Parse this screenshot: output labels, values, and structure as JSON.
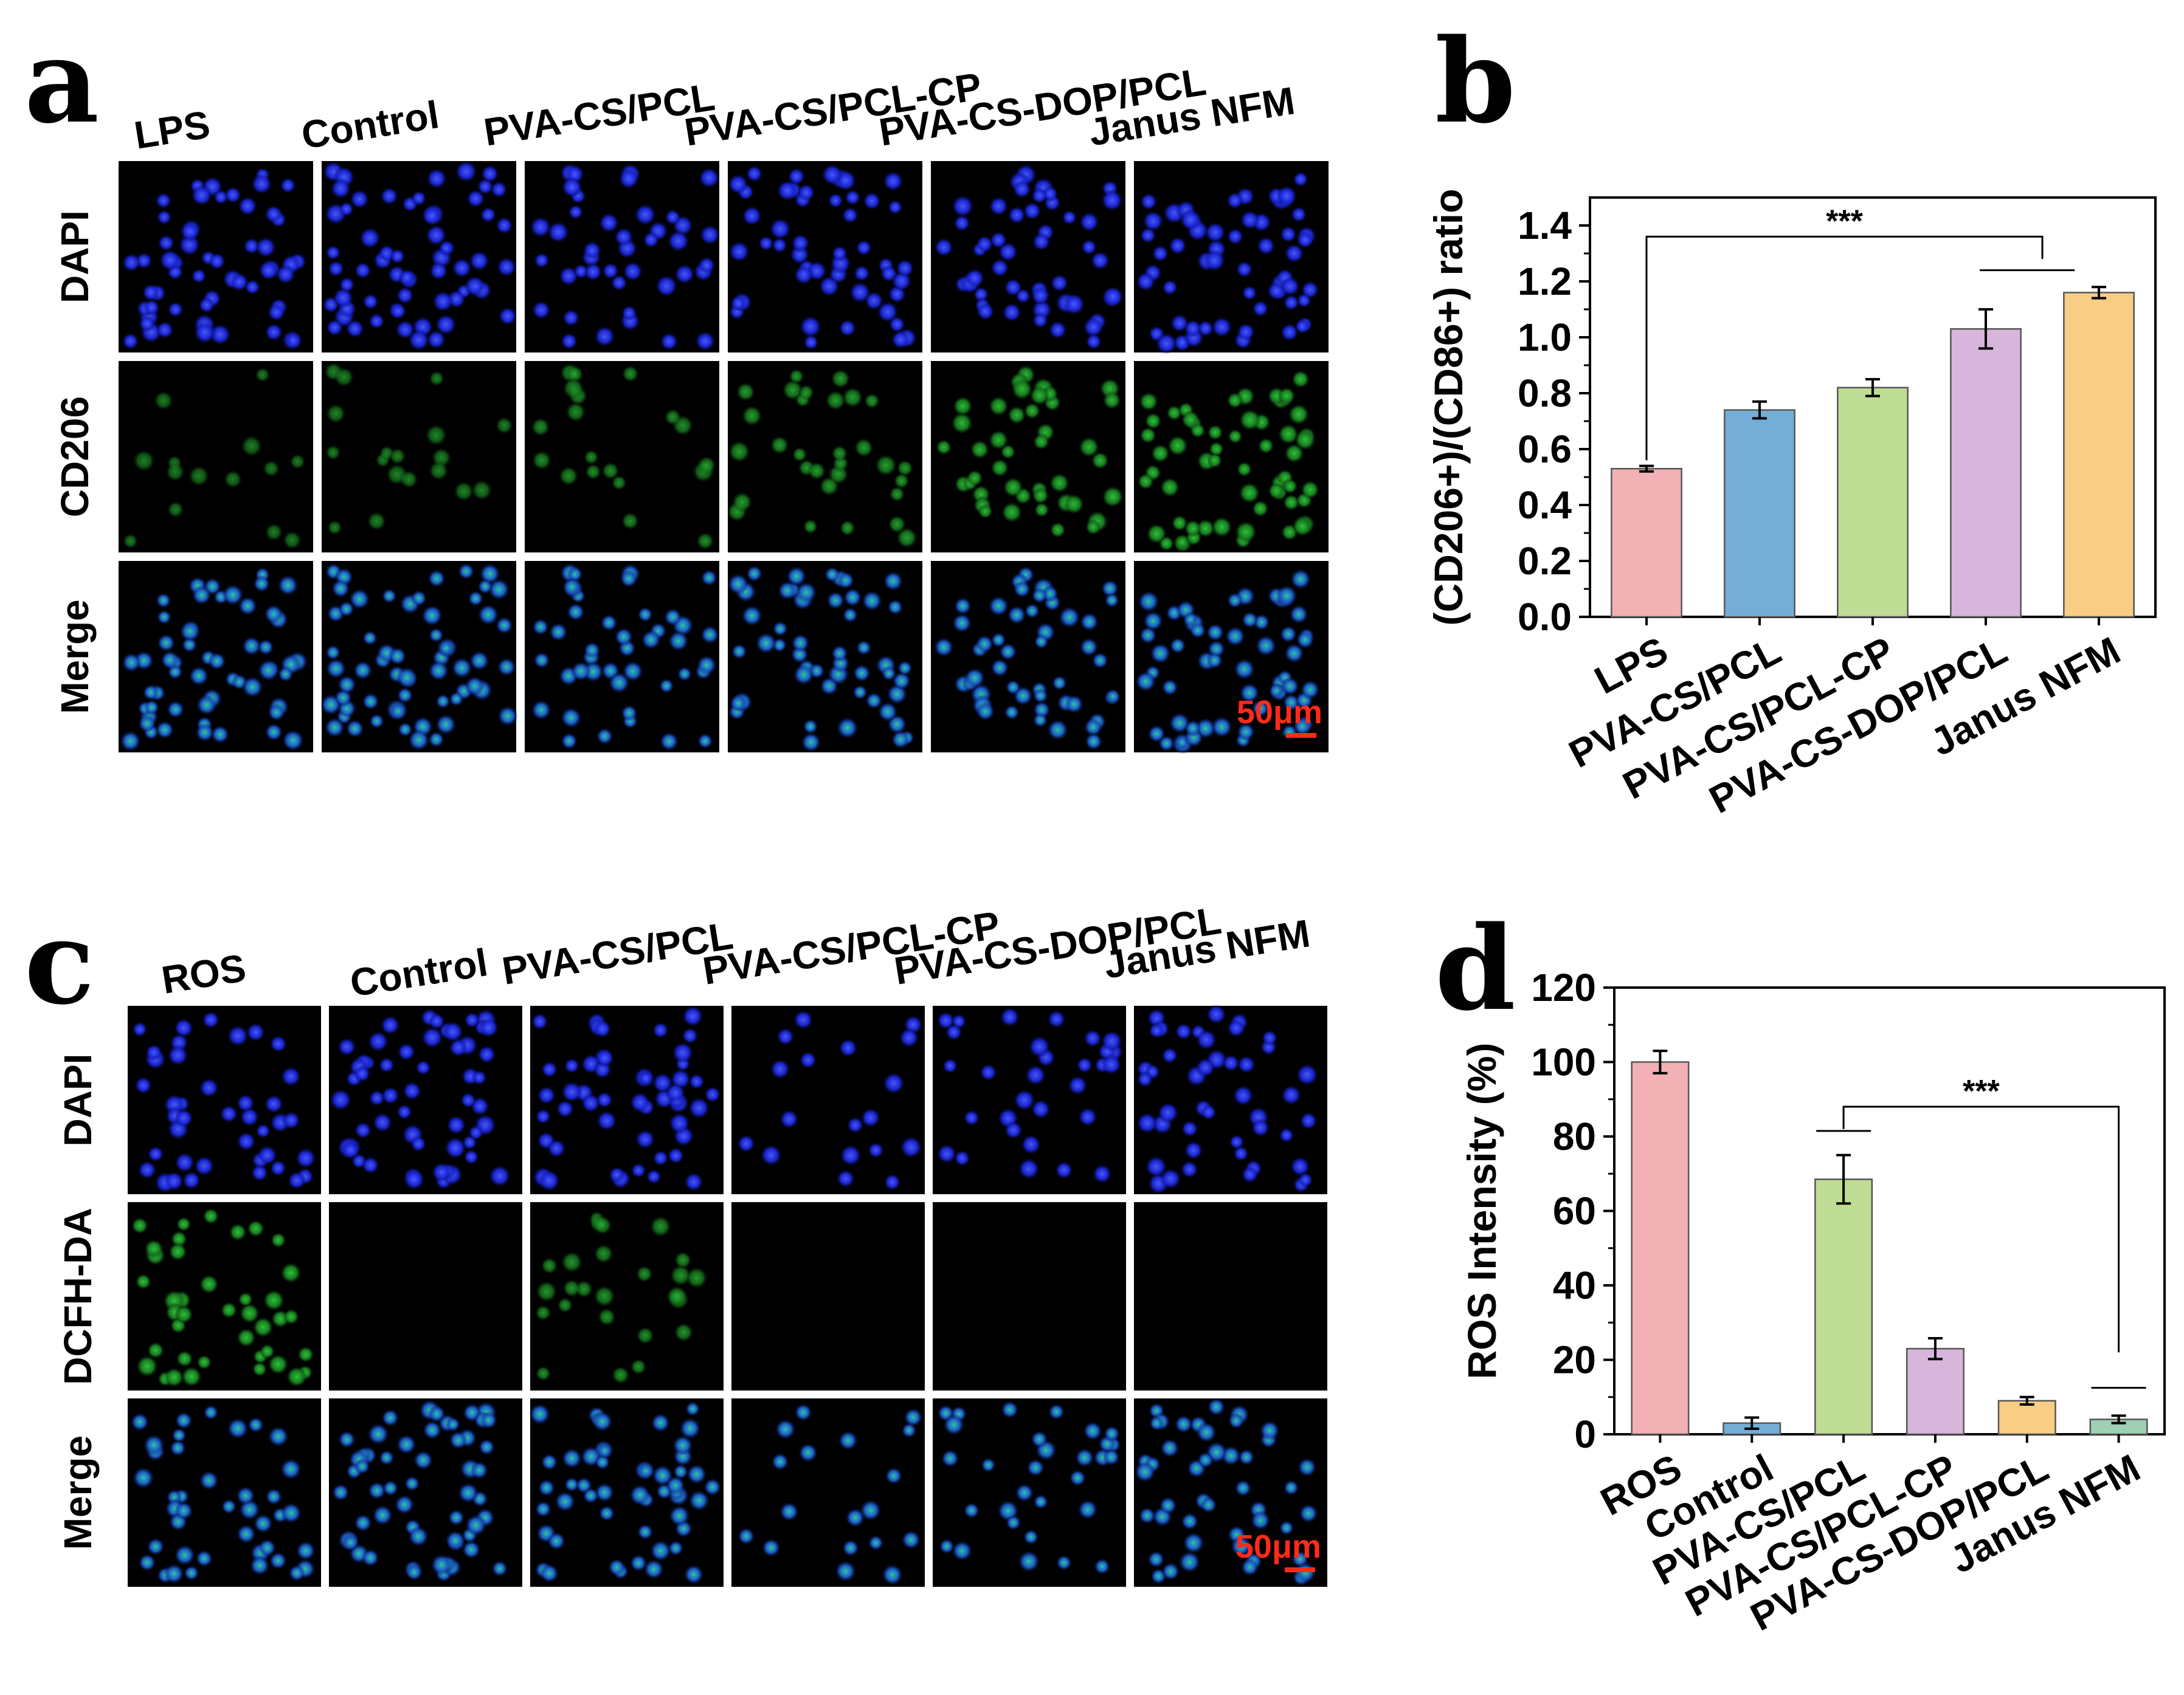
{
  "panels": {
    "a": {
      "label": "a",
      "columns": [
        "LPS",
        "Control",
        "PVA-CS/PCL",
        "PVA-CS/PCL-CP",
        "PVA-CS-DOP/PCL",
        "Janus NFM"
      ],
      "rows": [
        "DAPI",
        "CD206",
        "Merge"
      ],
      "scale_bar": "50μm"
    },
    "b": {
      "label": "b"
    },
    "c": {
      "label": "c",
      "columns": [
        "ROS",
        "Control",
        "PVA-CS/PCL",
        "PVA-CS/PCL-CP",
        "PVA-CS-DOP/PCL",
        "Janus NFM"
      ],
      "rows": [
        "DAPI",
        "DCFH-DA",
        "Merge"
      ],
      "scale_bar": "50μm"
    },
    "d": {
      "label": "d"
    }
  },
  "chart_data": [
    {
      "type": "bar",
      "panel": "b",
      "categories": [
        "LPS",
        "PVA-CS/PCL",
        "PVA-CS/PCL-CP",
        "PVA-CS-DOP/PCL",
        "Janus NFM"
      ],
      "values": [
        0.53,
        0.74,
        0.82,
        1.03,
        1.16
      ],
      "errors": [
        0.01,
        0.03,
        0.03,
        0.07,
        0.02
      ],
      "colors": [
        "#f2b1b4",
        "#74aed6",
        "#bfdc94",
        "#d8b6dc",
        "#f8cd84"
      ],
      "ylabel": "(CD206+)/(CD86+) ratio",
      "ylim": [
        0.0,
        1.5
      ],
      "yticks": [
        "0.0",
        "0.2",
        "0.4",
        "0.6",
        "0.8",
        "1.0",
        "1.2",
        "1.4"
      ],
      "significance": "***"
    },
    {
      "type": "bar",
      "panel": "d",
      "categories": [
        "ROS",
        "Control",
        "PVA-CS/PCL",
        "PVA-CS/PCL-CP",
        "PVA-CS-DOP/PCL",
        "Janus NFM"
      ],
      "values": [
        100,
        3,
        68.5,
        23,
        9,
        4
      ],
      "errors": [
        3,
        1.5,
        6.5,
        2.8,
        1,
        1
      ],
      "colors": [
        "#f2b1b4",
        "#74aed6",
        "#bfdc94",
        "#d8b6dc",
        "#f8cd84",
        "#9fcfb4"
      ],
      "ylabel": "ROS  Intensity (%)",
      "ylim": [
        0,
        120
      ],
      "yticks": [
        "0",
        "20",
        "40",
        "60",
        "80",
        "100",
        "120"
      ],
      "significance": "***"
    }
  ]
}
